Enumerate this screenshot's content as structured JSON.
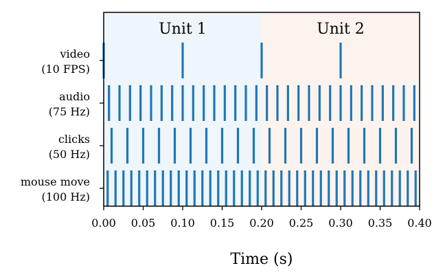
{
  "chart_data": {
    "type": "event-raster",
    "xlabel": "Time (s)",
    "xlim": [
      0,
      0.4
    ],
    "xticks": [
      "0.00",
      "0.05",
      "0.10",
      "0.15",
      "0.20",
      "0.25",
      "0.30",
      "0.35",
      "0.40"
    ],
    "units": [
      {
        "label": "Unit 1",
        "start": 0.0,
        "end": 0.2,
        "color": "#eef5fb"
      },
      {
        "label": "Unit 2",
        "start": 0.2,
        "end": 0.4,
        "color": "#fdf3ee"
      }
    ],
    "tick_color": "#1f77b4",
    "series": [
      {
        "label_line1": "video",
        "label_line2": "(10 FPS)",
        "rate_hz": 10,
        "count": 4
      },
      {
        "label_line1": "audio",
        "label_line2": "(75 Hz)",
        "rate_hz": 75,
        "count": 30
      },
      {
        "label_line1": "clicks",
        "label_line2": "(50 Hz)",
        "rate_hz": 50,
        "count": 20
      },
      {
        "label_line1": "mouse move",
        "label_line2": "(100 Hz)",
        "rate_hz": 100,
        "count": 40
      }
    ]
  }
}
